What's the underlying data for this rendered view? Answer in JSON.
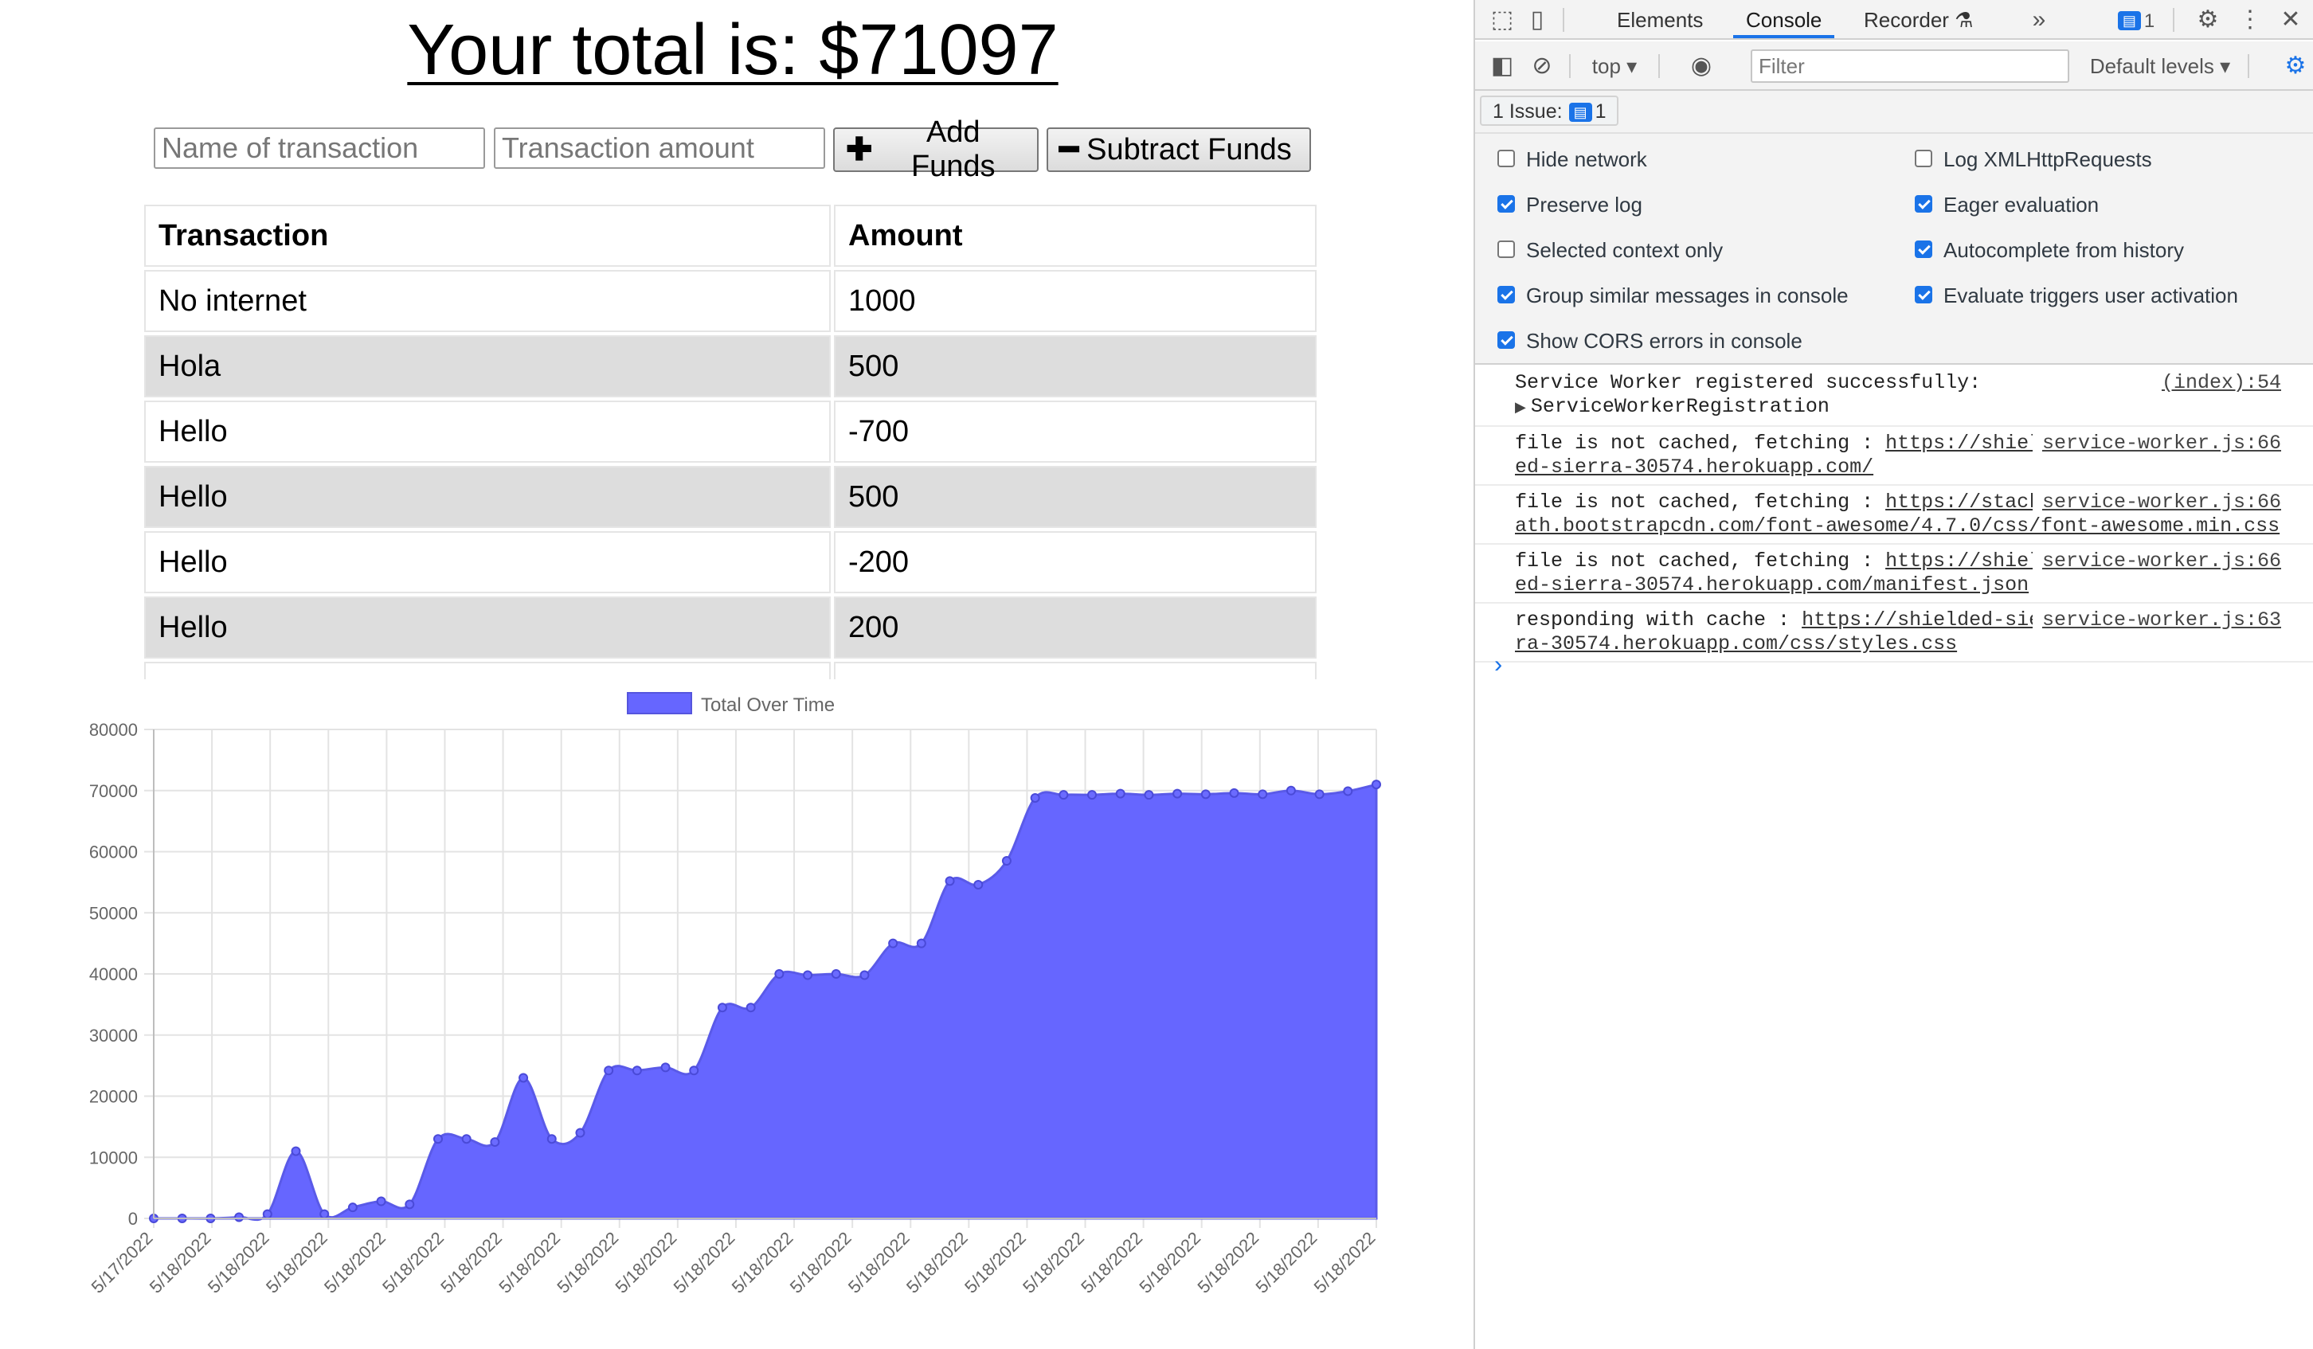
{
  "app": {
    "total_text": "Your total is: $71097",
    "form": {
      "name_placeholder": "Name of transaction",
      "amount_placeholder": "Transaction amount",
      "add_label": "Add Funds",
      "subtract_label": "Subtract Funds"
    },
    "table": {
      "headers": [
        "Transaction",
        "Amount"
      ],
      "rows": [
        {
          "name": "No internet",
          "amount": "1000"
        },
        {
          "name": "Hola",
          "amount": "500"
        },
        {
          "name": "Hello",
          "amount": "-700"
        },
        {
          "name": "Hello",
          "amount": "500"
        },
        {
          "name": "Hello",
          "amount": "-200"
        },
        {
          "name": "Hello",
          "amount": "200"
        }
      ]
    }
  },
  "chart_data": {
    "type": "area",
    "legend": "Total Over Time",
    "legend_position": "top",
    "fill_color": "#6666ff",
    "grid": true,
    "ylim": [
      0,
      80000
    ],
    "yticks": [
      0,
      10000,
      20000,
      30000,
      40000,
      50000,
      60000,
      70000,
      80000
    ],
    "x_tick_labels": [
      "5/17/2022",
      "5/18/2022",
      "5/18/2022",
      "5/18/2022",
      "5/18/2022",
      "5/18/2022",
      "5/18/2022",
      "5/18/2022",
      "5/18/2022",
      "5/18/2022",
      "5/18/2022",
      "5/18/2022",
      "5/18/2022",
      "5/18/2022",
      "5/18/2022",
      "5/18/2022",
      "5/18/2022",
      "5/18/2022",
      "5/18/2022",
      "5/18/2022",
      "5/18/2022",
      "5/18/2022"
    ],
    "values": [
      0,
      0,
      0,
      200,
      700,
      11000,
      700,
      1800,
      2800,
      2300,
      13000,
      13000,
      12500,
      23000,
      13000,
      14000,
      24200,
      24200,
      24700,
      24200,
      34500,
      34500,
      40000,
      39800,
      40000,
      39800,
      45000,
      45000,
      55200,
      54600,
      58500,
      68800,
      69300,
      69300,
      69500,
      69300,
      69500,
      69400,
      69600,
      69400,
      70000,
      69400,
      69900,
      71000
    ]
  },
  "devtools": {
    "tabs": [
      "Elements",
      "Console",
      "Recorder"
    ],
    "active_tab": "Console",
    "badge_count": "1",
    "context": "top",
    "filter_placeholder": "Filter",
    "levels": "Default levels",
    "issues_label": "1 Issue:",
    "issues_count": "1",
    "settings_left": [
      {
        "label": "Hide network",
        "checked": false
      },
      {
        "label": "Preserve log",
        "checked": true
      },
      {
        "label": "Selected context only",
        "checked": false
      },
      {
        "label": "Group similar messages in console",
        "checked": true
      },
      {
        "label": "Show CORS errors in console",
        "checked": true
      }
    ],
    "settings_right": [
      {
        "label": "Log XMLHttpRequests",
        "checked": false
      },
      {
        "label": "Eager evaluation",
        "checked": true
      },
      {
        "label": "Autocomplete from history",
        "checked": true
      },
      {
        "label": "Evaluate triggers user activation",
        "checked": true
      }
    ],
    "messages": [
      {
        "text": "Service Worker registered successfully:",
        "sub": "ServiceWorkerRegistration",
        "source": "(index):54"
      },
      {
        "prefix": "file is not cached, fetching : ",
        "link1": "https://shield",
        "link2": "ed-sierra-30574.herokuapp.com/",
        "source": "service-worker.js:66"
      },
      {
        "prefix": "file is not cached, fetching : ",
        "link1": "https://stackp",
        "link2": "ath.bootstrapcdn.com/font-awesome/4.7.0/css/font-awesome.min.css",
        "source": "service-worker.js:66"
      },
      {
        "prefix": "file is not cached, fetching : ",
        "link1": "https://shield",
        "link2": "ed-sierra-30574.herokuapp.com/manifest.json",
        "source": "service-worker.js:66"
      },
      {
        "prefix": "responding with cache : ",
        "link1": "https://shielded-sier",
        "link2": "ra-30574.herokuapp.com/css/styles.css",
        "source": "service-worker.js:63"
      }
    ]
  }
}
